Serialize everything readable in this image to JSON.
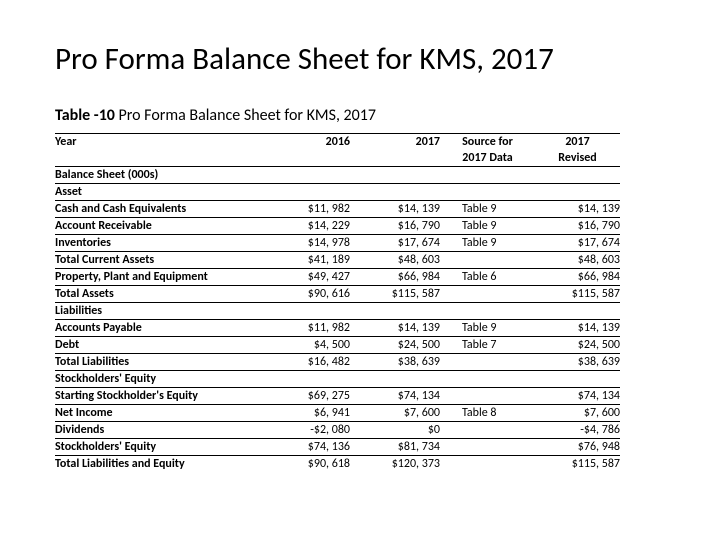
{
  "title": "Pro Forma Balance Sheet for KMS, 2017",
  "subtitle_bold": "Table -10",
  "subtitle_rest": " Pro Forma Balance Sheet for KMS, 2017",
  "headers": {
    "year": "Year",
    "c2016": "2016",
    "c2017": "2017",
    "src1": "Source for",
    "src2": "2017 Data",
    "rev1": "2017",
    "rev2": "Revised"
  },
  "rows": [
    {
      "label": "Balance Sheet (000s)",
      "c2016": "",
      "c2017": "",
      "src": "",
      "rev": ""
    },
    {
      "label": "Asset",
      "c2016": "",
      "c2017": "",
      "src": "",
      "rev": ""
    },
    {
      "label": "Cash and Cash Equivalents",
      "c2016": "$11, 982",
      "c2017": "$14, 139",
      "src": "Table 9",
      "rev": "$14, 139"
    },
    {
      "label": "Account Receivable",
      "c2016": "$14, 229",
      "c2017": "$16, 790",
      "src": "Table 9",
      "rev": "$16, 790"
    },
    {
      "label": "Inventories",
      "c2016": "$14, 978",
      "c2017": "$17, 674",
      "src": "Table 9",
      "rev": "$17, 674"
    },
    {
      "label": "Total Current Assets",
      "c2016": "$41, 189",
      "c2017": "$48, 603",
      "src": "",
      "rev": "$48, 603"
    },
    {
      "label": "Property, Plant and Equipment",
      "c2016": "$49, 427",
      "c2017": "$66, 984",
      "src": "Table 6",
      "rev": "$66, 984"
    },
    {
      "label": "Total Assets",
      "c2016": "$90, 616",
      "c2017": "$115, 587",
      "src": "",
      "rev": "$115, 587"
    },
    {
      "label": "Liabilities",
      "c2016": "",
      "c2017": "",
      "src": "",
      "rev": ""
    },
    {
      "label": "Accounts Payable",
      "c2016": "$11, 982",
      "c2017": "$14, 139",
      "src": "Table 9",
      "rev": "$14, 139"
    },
    {
      "label": "Debt",
      "c2016": "$4, 500",
      "c2017": "$24, 500",
      "src": "Table 7",
      "rev": "$24, 500"
    },
    {
      "label": "Total Liabilities",
      "c2016": "$16, 482",
      "c2017": "$38, 639",
      "src": "",
      "rev": "$38, 639"
    },
    {
      "label": "Stockholders' Equity",
      "c2016": "",
      "c2017": "",
      "src": "",
      "rev": ""
    },
    {
      "label": "Starting Stockholder's Equity",
      "c2016": "$69, 275",
      "c2017": "$74, 134",
      "src": "",
      "rev": "$74, 134"
    },
    {
      "label": "Net Income",
      "c2016": "$6, 941",
      "c2017": "$7, 600",
      "src": "Table 8",
      "rev": "$7, 600"
    },
    {
      "label": "Dividends",
      "c2016": "-$2, 080",
      "c2017": "$0",
      "src": "",
      "rev": "-$4, 786"
    },
    {
      "label": "Stockholders' Equity",
      "c2016": "$74, 136",
      "c2017": "$81, 734",
      "src": "",
      "rev": "$76, 948"
    },
    {
      "label": "Total Liabilities and Equity",
      "c2016": "$90, 618",
      "c2017": "$120, 373",
      "src": "",
      "rev": "$115, 587"
    }
  ]
}
